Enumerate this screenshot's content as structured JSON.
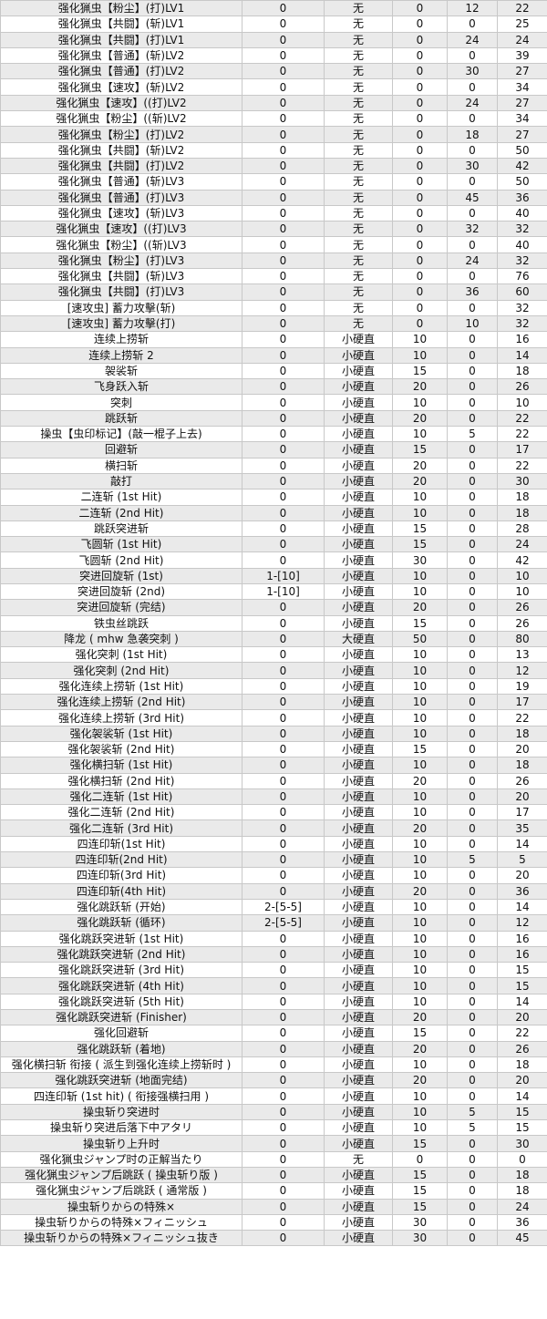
{
  "rows": [
    [
      "强化猟虫【粉尘】(打)LV1",
      "0",
      "无",
      "0",
      "12",
      "22"
    ],
    [
      "强化猟虫【共闘】(斩)LV1",
      "0",
      "无",
      "0",
      "0",
      "25"
    ],
    [
      "强化猟虫【共闘】(打)LV1",
      "0",
      "无",
      "0",
      "24",
      "24"
    ],
    [
      "强化猟虫【普通】(斩)LV2",
      "0",
      "无",
      "0",
      "0",
      "39"
    ],
    [
      "强化猟虫【普通】(打)LV2",
      "0",
      "无",
      "0",
      "30",
      "27"
    ],
    [
      "强化猟虫【速攻】(斩)LV2",
      "0",
      "无",
      "0",
      "0",
      "34"
    ],
    [
      "强化猟虫【速攻】((打)LV2",
      "0",
      "无",
      "0",
      "24",
      "27"
    ],
    [
      "强化猟虫【粉尘】((斩)LV2",
      "0",
      "无",
      "0",
      "0",
      "34"
    ],
    [
      "强化猟虫【粉尘】(打)LV2",
      "0",
      "无",
      "0",
      "18",
      "27"
    ],
    [
      "强化猟虫【共闘】(斩)LV2",
      "0",
      "无",
      "0",
      "0",
      "50"
    ],
    [
      "强化猟虫【共闘】(打)LV2",
      "0",
      "无",
      "0",
      "30",
      "42"
    ],
    [
      "强化猟虫【普通】(斩)LV3",
      "0",
      "无",
      "0",
      "0",
      "50"
    ],
    [
      "强化猟虫【普通】(打)LV3",
      "0",
      "无",
      "0",
      "45",
      "36"
    ],
    [
      "强化猟虫【速攻】(斩)LV3",
      "0",
      "无",
      "0",
      "0",
      "40"
    ],
    [
      "强化猟虫【速攻】((打)LV3",
      "0",
      "无",
      "0",
      "32",
      "32"
    ],
    [
      "强化猟虫【粉尘】((斩)LV3",
      "0",
      "无",
      "0",
      "0",
      "40"
    ],
    [
      "强化猟虫【粉尘】(打)LV3",
      "0",
      "无",
      "0",
      "24",
      "32"
    ],
    [
      "强化猟虫【共闘】(斩)LV3",
      "0",
      "无",
      "0",
      "0",
      "76"
    ],
    [
      "强化猟虫【共闘】(打)LV3",
      "0",
      "无",
      "0",
      "36",
      "60"
    ],
    [
      "[速攻虫] 蓄力攻擊(斩)",
      "0",
      "无",
      "0",
      "0",
      "32"
    ],
    [
      "[速攻虫] 蓄力攻擊(打)",
      "0",
      "无",
      "0",
      "10",
      "32"
    ],
    [
      "连续上捞斩",
      "0",
      "小硬直",
      "10",
      "0",
      "16"
    ],
    [
      "连续上捞斩 2",
      "0",
      "小硬直",
      "10",
      "0",
      "14"
    ],
    [
      "袈裟斩",
      "0",
      "小硬直",
      "15",
      "0",
      "18"
    ],
    [
      "飞身跃入斩",
      "0",
      "小硬直",
      "20",
      "0",
      "26"
    ],
    [
      "突刺",
      "0",
      "小硬直",
      "10",
      "0",
      "10"
    ],
    [
      "跳跃斩",
      "0",
      "小硬直",
      "20",
      "0",
      "22"
    ],
    [
      "操虫【虫印标记】(敲一棍子上去)",
      "0",
      "小硬直",
      "10",
      "5",
      "22"
    ],
    [
      "回避斩",
      "0",
      "小硬直",
      "15",
      "0",
      "17"
    ],
    [
      "横扫斩",
      "0",
      "小硬直",
      "20",
      "0",
      "22"
    ],
    [
      "敲打",
      "0",
      "小硬直",
      "20",
      "0",
      "30"
    ],
    [
      "二连斩 (1st Hit)",
      "0",
      "小硬直",
      "10",
      "0",
      "18"
    ],
    [
      "二连斩 (2nd Hit)",
      "0",
      "小硬直",
      "10",
      "0",
      "18"
    ],
    [
      "跳跃突进斩",
      "0",
      "小硬直",
      "15",
      "0",
      "28"
    ],
    [
      "飞圆斩 (1st Hit)",
      "0",
      "小硬直",
      "15",
      "0",
      "24"
    ],
    [
      "飞圆斩 (2nd Hit)",
      "0",
      "小硬直",
      "30",
      "0",
      "42"
    ],
    [
      "突进回旋斩 (1st)",
      "1-[10]",
      "小硬直",
      "10",
      "0",
      "10"
    ],
    [
      "突进回旋斩 (2nd)",
      "1-[10]",
      "小硬直",
      "10",
      "0",
      "10"
    ],
    [
      "突进回旋斩 (完结)",
      "0",
      "小硬直",
      "20",
      "0",
      "26"
    ],
    [
      "铁虫丝跳跃",
      "0",
      "小硬直",
      "15",
      "0",
      "26"
    ],
    [
      "降龙 ( mhw 急袭突刺 )",
      "0",
      "大硬直",
      "50",
      "0",
      "80"
    ],
    [
      "强化突刺 (1st Hit)",
      "0",
      "小硬直",
      "10",
      "0",
      "13"
    ],
    [
      "强化突刺 (2nd Hit)",
      "0",
      "小硬直",
      "10",
      "0",
      "12"
    ],
    [
      "强化连续上捞斩 (1st Hit)",
      "0",
      "小硬直",
      "10",
      "0",
      "19"
    ],
    [
      "强化连续上捞斩 (2nd Hit)",
      "0",
      "小硬直",
      "10",
      "0",
      "17"
    ],
    [
      "强化连续上捞斩 (3rd Hit)",
      "0",
      "小硬直",
      "10",
      "0",
      "22"
    ],
    [
      "强化袈裟斩 (1st Hit)",
      "0",
      "小硬直",
      "10",
      "0",
      "18"
    ],
    [
      "强化袈裟斩 (2nd Hit)",
      "0",
      "小硬直",
      "15",
      "0",
      "20"
    ],
    [
      "强化横扫斩 (1st Hit)",
      "0",
      "小硬直",
      "10",
      "0",
      "18"
    ],
    [
      "强化横扫斩 (2nd Hit)",
      "0",
      "小硬直",
      "20",
      "0",
      "26"
    ],
    [
      "强化二连斩 (1st Hit)",
      "0",
      "小硬直",
      "10",
      "0",
      "20"
    ],
    [
      "强化二连斩 (2nd Hit)",
      "0",
      "小硬直",
      "10",
      "0",
      "17"
    ],
    [
      "强化二连斩 (3rd Hit)",
      "0",
      "小硬直",
      "20",
      "0",
      "35"
    ],
    [
      "四连印斩(1st Hit)",
      "0",
      "小硬直",
      "10",
      "0",
      "14"
    ],
    [
      "四连印斩(2nd Hit)",
      "0",
      "小硬直",
      "10",
      "5",
      "5"
    ],
    [
      "四连印斩(3rd Hit)",
      "0",
      "小硬直",
      "10",
      "0",
      "20"
    ],
    [
      "四连印斩(4th Hit)",
      "0",
      "小硬直",
      "20",
      "0",
      "36"
    ],
    [
      "强化跳跃斩 (开始)",
      "2-[5-5]",
      "小硬直",
      "10",
      "0",
      "14"
    ],
    [
      "强化跳跃斩 (循环)",
      "2-[5-5]",
      "小硬直",
      "10",
      "0",
      "12"
    ],
    [
      "强化跳跃突进斩 (1st Hit)",
      "0",
      "小硬直",
      "10",
      "0",
      "16"
    ],
    [
      "强化跳跃突进斩 (2nd Hit)",
      "0",
      "小硬直",
      "10",
      "0",
      "16"
    ],
    [
      "强化跳跃突进斩 (3rd Hit)",
      "0",
      "小硬直",
      "10",
      "0",
      "15"
    ],
    [
      "强化跳跃突进斩 (4th Hit)",
      "0",
      "小硬直",
      "10",
      "0",
      "15"
    ],
    [
      "强化跳跃突进斩 (5th Hit)",
      "0",
      "小硬直",
      "10",
      "0",
      "14"
    ],
    [
      "强化跳跃突进斩 (Finisher)",
      "0",
      "小硬直",
      "20",
      "0",
      "20"
    ],
    [
      "强化回避斩",
      "0",
      "小硬直",
      "15",
      "0",
      "22"
    ],
    [
      "强化跳跃斩 (着地)",
      "0",
      "小硬直",
      "20",
      "0",
      "26"
    ],
    [
      "强化横扫斩 衔接 ( 派生到强化连续上捞斩时 )",
      "0",
      "小硬直",
      "10",
      "0",
      "18"
    ],
    [
      "强化跳跃突进斩 (地面完结)",
      "0",
      "小硬直",
      "20",
      "0",
      "20"
    ],
    [
      "四连印斩 (1st hit) ( 衔接强横扫用 )",
      "0",
      "小硬直",
      "10",
      "0",
      "14"
    ],
    [
      "操虫斩り突进时",
      "0",
      "小硬直",
      "10",
      "5",
      "15"
    ],
    [
      "操虫斩り突进后落下中アタリ",
      "0",
      "小硬直",
      "10",
      "5",
      "15"
    ],
    [
      "操虫斩り上升时",
      "0",
      "小硬直",
      "15",
      "0",
      "30"
    ],
    [
      "强化猟虫ジャンプ时の正解当たり",
      "0",
      "无",
      "0",
      "0",
      "0"
    ],
    [
      "强化猟虫ジャンプ后跳跃 ( 操虫斩り版 )",
      "0",
      "小硬直",
      "15",
      "0",
      "18"
    ],
    [
      "强化猟虫ジャンプ后跳跃 ( 通常版 )",
      "0",
      "小硬直",
      "15",
      "0",
      "18"
    ],
    [
      "操虫斩りからの特殊×",
      "0",
      "小硬直",
      "15",
      "0",
      "24"
    ],
    [
      "操虫斩りからの特殊×フィニッシュ",
      "0",
      "小硬直",
      "30",
      "0",
      "36"
    ],
    [
      "操虫斩りからの特殊×フィニッシュ抜き",
      "0",
      "小硬直",
      "30",
      "0",
      "45"
    ]
  ]
}
